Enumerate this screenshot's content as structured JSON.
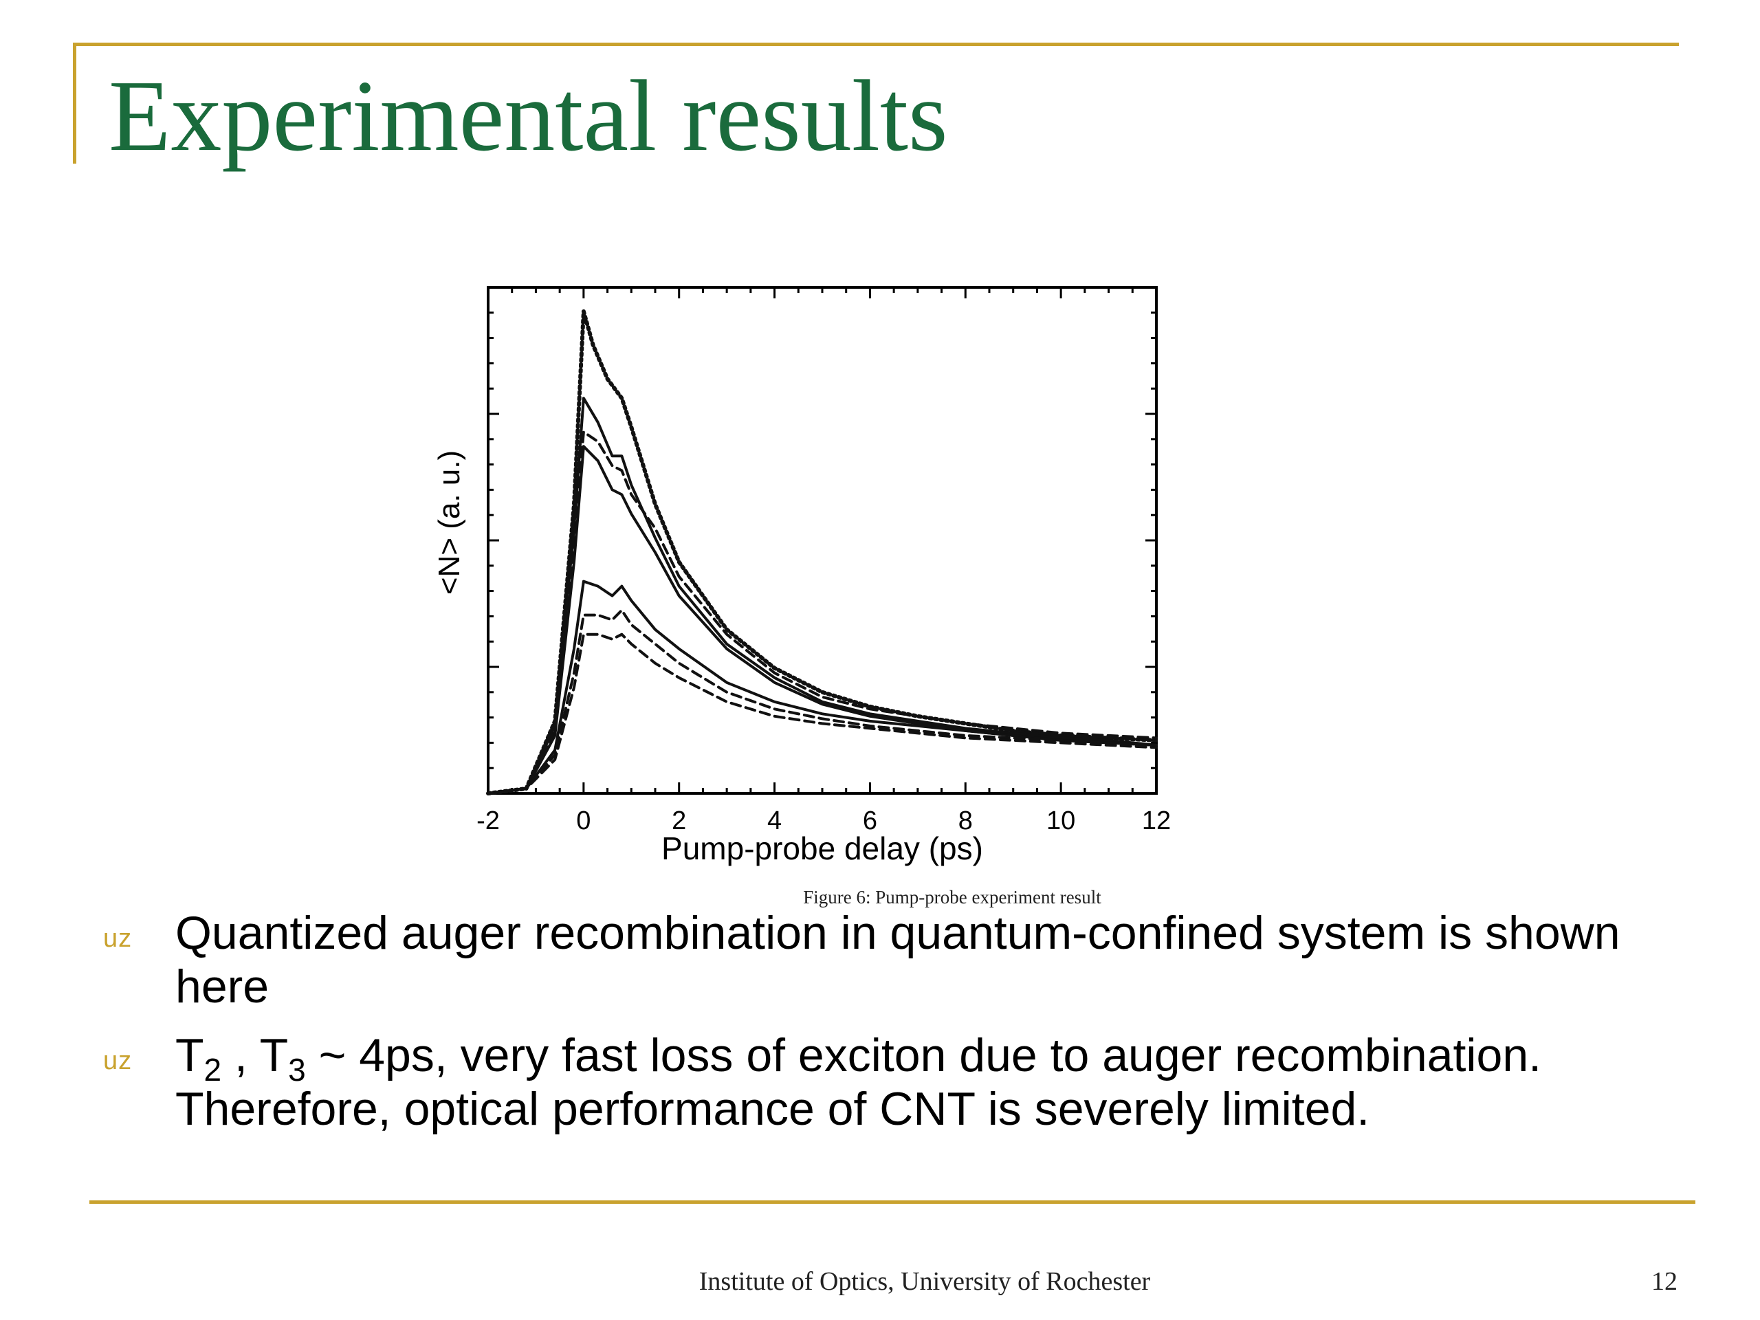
{
  "slide": {
    "title": "Experimental results",
    "caption": "Figure 6: Pump-probe experiment result",
    "footer": "Institute of Optics, University of Rochester",
    "page_number": "12",
    "accent_color": "#c9a22e",
    "title_color": "#1a6b3c",
    "bullet_glyph": "uz"
  },
  "bullets": [
    {
      "text": "Quantized auger recombination in quantum-confined system is shown here"
    },
    {
      "p1": "T",
      "s1": "2",
      "p2": " , T",
      "s2": "3",
      "rest": " ~ 4ps, very fast loss of exciton due to auger recombination. Therefore, optical performance of CNT is severely limited."
    }
  ],
  "chart_data": {
    "type": "line",
    "xlabel": "Pump-probe delay (ps)",
    "ylabel": "<N> (a. u.)",
    "xlim": [
      -2,
      12
    ],
    "ylim": [
      0,
      1.05
    ],
    "xticks": [
      "-2",
      "0",
      "2",
      "4",
      "6",
      "8",
      "10",
      "12"
    ],
    "grid": false,
    "series": [
      {
        "style": "dotted",
        "x": [
          -2,
          -1.2,
          -0.6,
          -0.2,
          0,
          0.2,
          0.5,
          0.8,
          1.0,
          1.5,
          2,
          3,
          4,
          5,
          6,
          7,
          8,
          9,
          10,
          11,
          12
        ],
        "y": [
          0,
          0.01,
          0.15,
          0.6,
          1.0,
          0.93,
          0.86,
          0.82,
          0.76,
          0.6,
          0.48,
          0.34,
          0.26,
          0.21,
          0.18,
          0.16,
          0.145,
          0.13,
          0.12,
          0.115,
          0.11
        ]
      },
      {
        "style": "solid",
        "x": [
          -2,
          -1.2,
          -0.6,
          -0.2,
          0,
          0.3,
          0.6,
          0.8,
          1.0,
          1.5,
          2,
          3,
          4,
          5,
          6,
          7,
          8,
          9,
          10,
          11,
          12
        ],
        "y": [
          0,
          0.01,
          0.14,
          0.55,
          0.82,
          0.77,
          0.7,
          0.7,
          0.64,
          0.53,
          0.43,
          0.31,
          0.24,
          0.19,
          0.165,
          0.15,
          0.135,
          0.125,
          0.115,
          0.11,
          0.1
        ]
      },
      {
        "style": "dashed",
        "x": [
          -2,
          -1.2,
          -0.6,
          -0.2,
          0,
          0.3,
          0.6,
          0.8,
          1.0,
          1.5,
          2,
          3,
          4,
          5,
          6,
          7,
          8,
          9,
          10,
          11,
          12
        ],
        "y": [
          0,
          0.01,
          0.13,
          0.52,
          0.75,
          0.73,
          0.68,
          0.67,
          0.62,
          0.55,
          0.45,
          0.33,
          0.25,
          0.2,
          0.175,
          0.16,
          0.145,
          0.135,
          0.125,
          0.12,
          0.115
        ]
      },
      {
        "style": "solid",
        "x": [
          -2,
          -1.2,
          -0.6,
          -0.2,
          0,
          0.3,
          0.6,
          0.8,
          1.0,
          1.5,
          2,
          3,
          4,
          5,
          6,
          7,
          8,
          9,
          10,
          11,
          12
        ],
        "y": [
          0,
          0.01,
          0.12,
          0.48,
          0.72,
          0.69,
          0.63,
          0.62,
          0.58,
          0.5,
          0.41,
          0.3,
          0.23,
          0.185,
          0.16,
          0.145,
          0.13,
          0.12,
          0.11,
          0.105,
          0.1
        ]
      },
      {
        "style": "solid",
        "x": [
          -2,
          -1.2,
          -0.6,
          -0.2,
          0,
          0.3,
          0.6,
          0.8,
          1.0,
          1.5,
          2,
          3,
          4,
          5,
          6,
          7,
          8,
          9,
          10,
          11,
          12
        ],
        "y": [
          0,
          0.01,
          0.09,
          0.3,
          0.44,
          0.43,
          0.41,
          0.43,
          0.4,
          0.34,
          0.3,
          0.23,
          0.19,
          0.165,
          0.15,
          0.14,
          0.13,
          0.12,
          0.11,
          0.105,
          0.1
        ]
      },
      {
        "style": "dashed",
        "x": [
          -2,
          -1.2,
          -0.6,
          -0.2,
          0,
          0.3,
          0.6,
          0.8,
          1.0,
          1.5,
          2,
          3,
          4,
          5,
          6,
          7,
          8,
          9,
          10,
          11,
          12
        ],
        "y": [
          0,
          0.01,
          0.08,
          0.25,
          0.37,
          0.37,
          0.36,
          0.38,
          0.35,
          0.31,
          0.27,
          0.21,
          0.175,
          0.155,
          0.14,
          0.13,
          0.12,
          0.115,
          0.11,
          0.105,
          0.1
        ]
      },
      {
        "style": "dashed",
        "x": [
          -2,
          -1.2,
          -0.6,
          -0.2,
          0,
          0.3,
          0.6,
          0.8,
          1.0,
          1.5,
          2,
          3,
          4,
          5,
          6,
          7,
          8,
          9,
          10,
          11,
          12
        ],
        "y": [
          0,
          0.01,
          0.07,
          0.22,
          0.33,
          0.33,
          0.32,
          0.33,
          0.31,
          0.27,
          0.24,
          0.19,
          0.16,
          0.145,
          0.135,
          0.125,
          0.115,
          0.11,
          0.105,
          0.1,
          0.095
        ]
      }
    ]
  }
}
